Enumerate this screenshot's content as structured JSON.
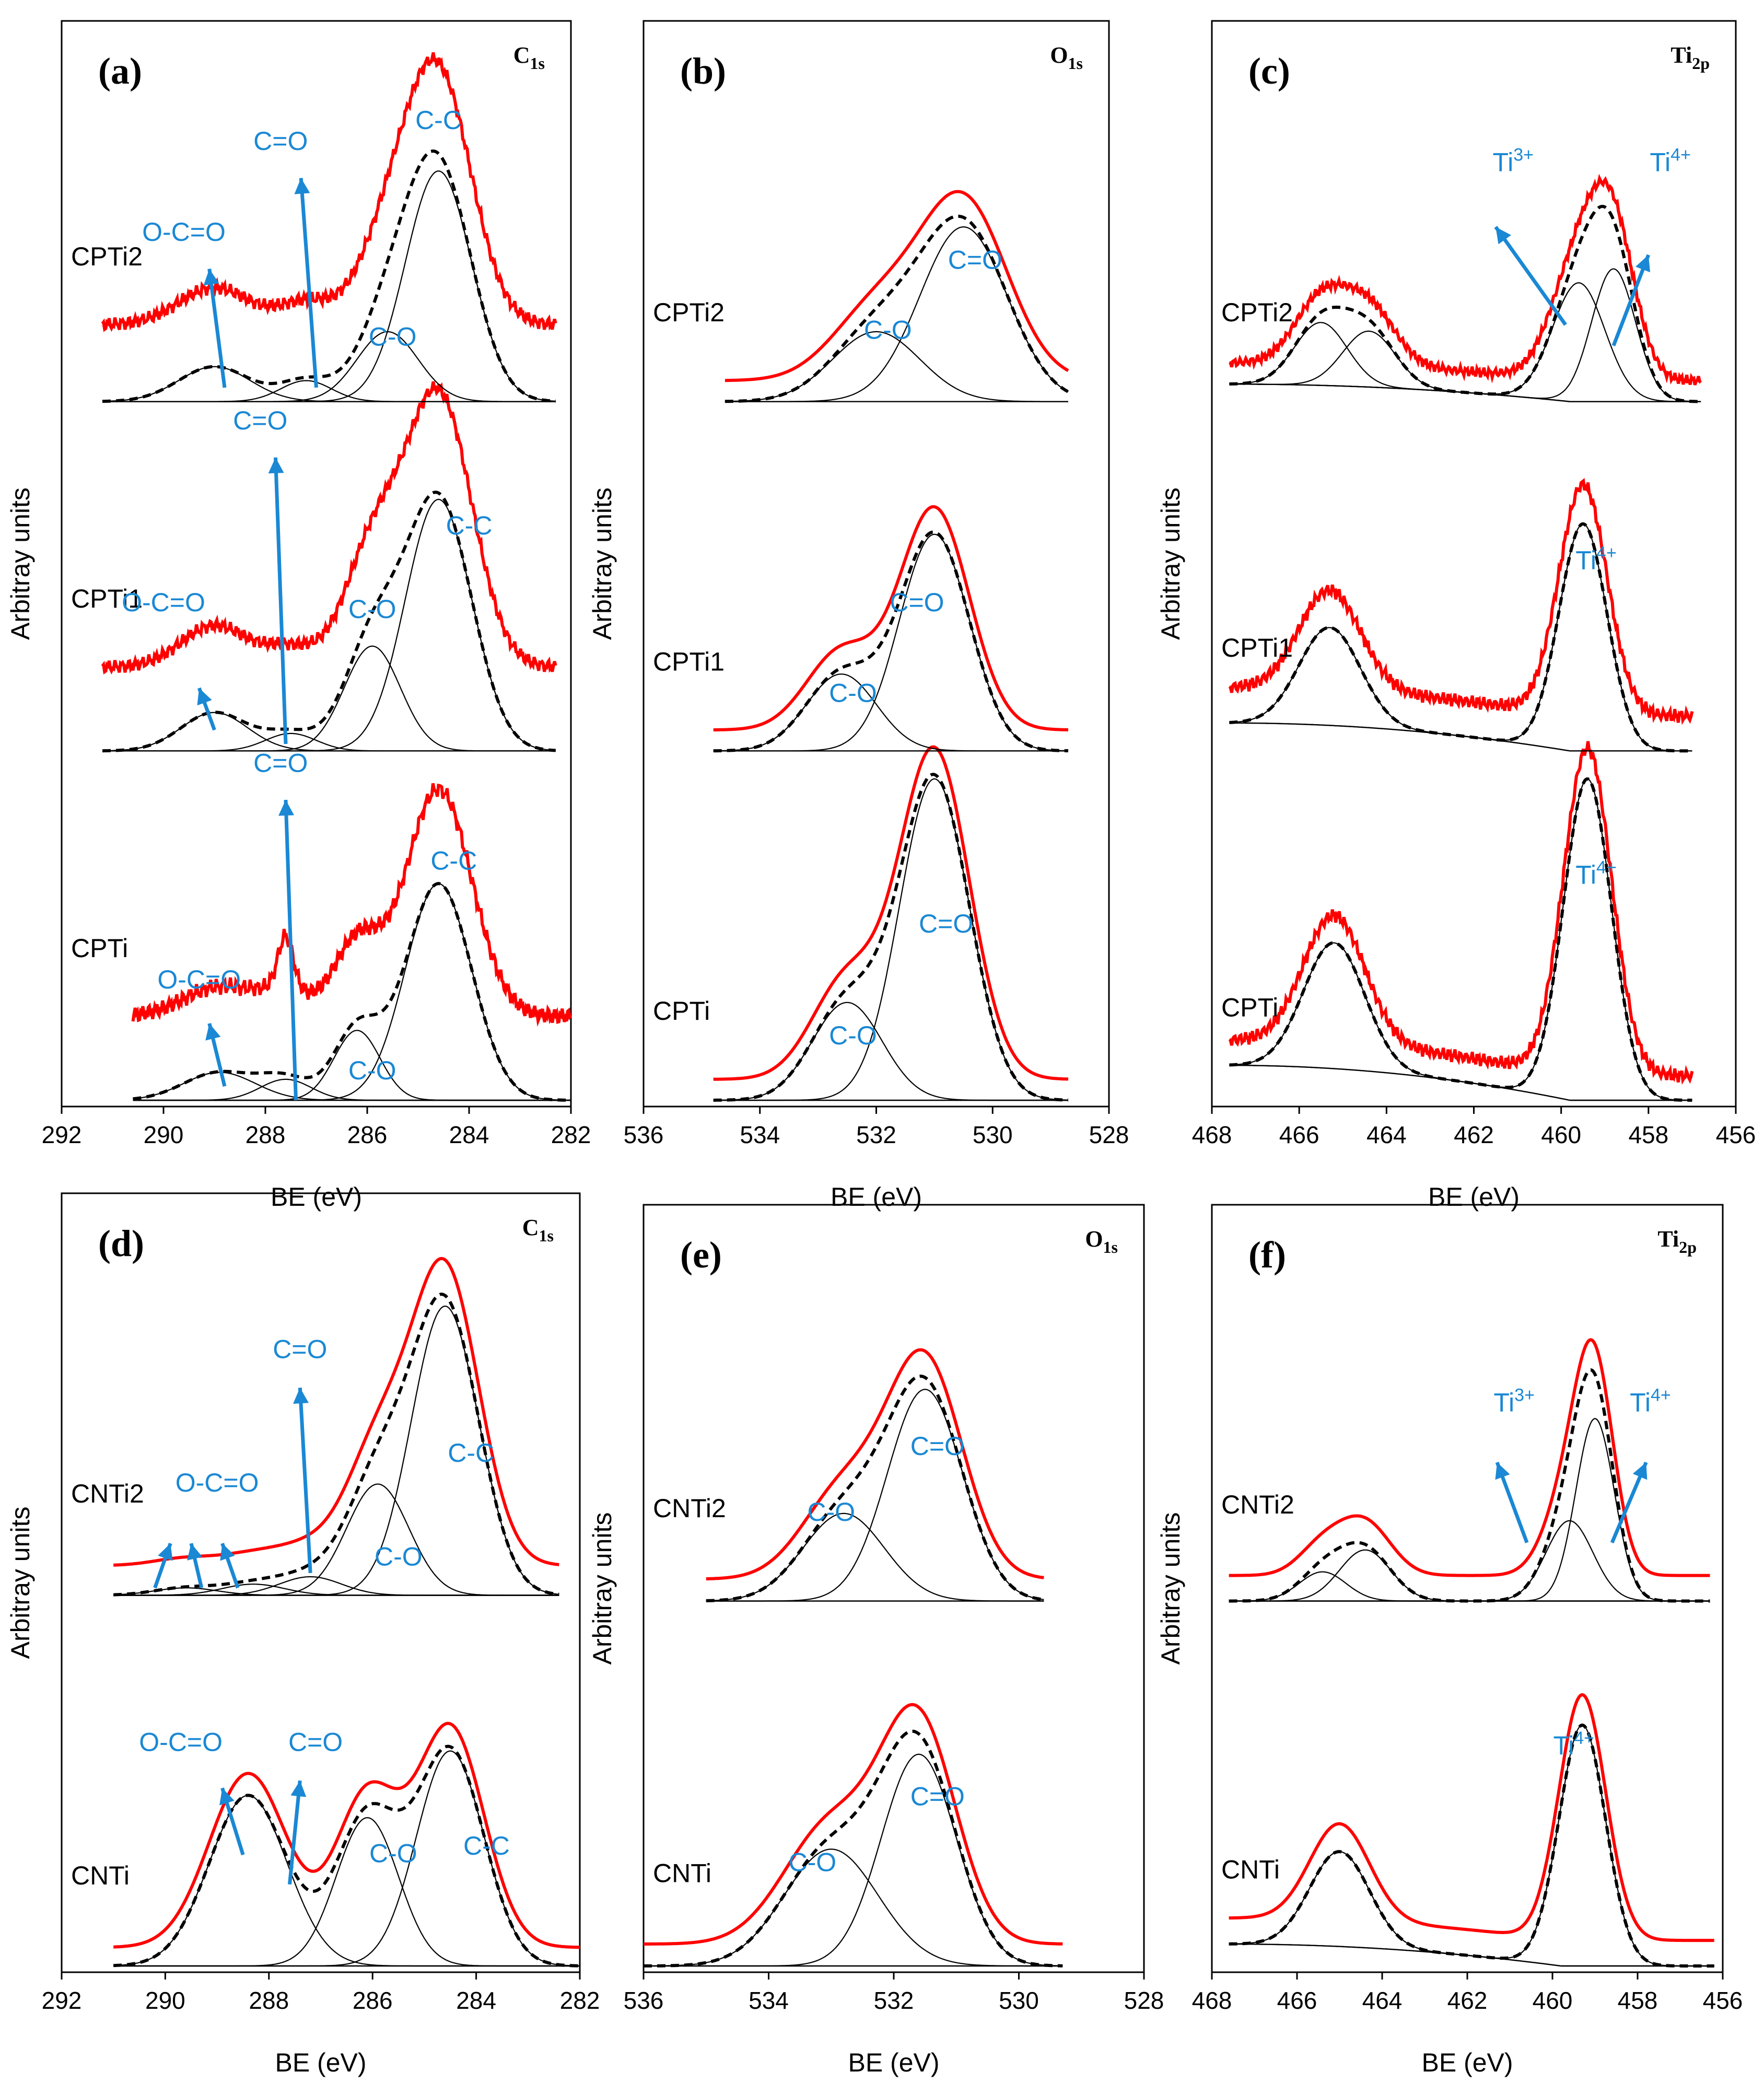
{
  "figure": {
    "background": "#ffffff",
    "axis_color": "#000000",
    "annotation_color": "#1a88d4",
    "envelope_color": "#ff0000"
  },
  "chart_data": [
    {
      "id": "a",
      "panel_label": "(a)",
      "element": "C",
      "element_sub": "1s",
      "type": "line",
      "xlabel": "BE (eV)",
      "ylabel": "Arbitray units",
      "xlim": [
        292,
        282
      ],
      "ylim": [
        0,
        3
      ],
      "xticks": [
        292,
        290,
        288,
        286,
        284,
        282
      ],
      "stacks": [
        {
          "label": "CPTi",
          "offset": 0.0,
          "x_range": [
            290.6,
            282.0
          ],
          "raw_noise": 0.025,
          "raw_offset": 0.24,
          "raw_scale": 1.05,
          "raw_extra": [
            [
              287.6,
              0.15,
              0.15
            ]
          ],
          "components": [
            {
              "center": 284.6,
              "height": 0.62,
              "width": 0.65
            },
            {
              "center": 286.2,
              "height": 0.2,
              "width": 0.45
            },
            {
              "center": 287.6,
              "height": 0.06,
              "width": 0.5
            },
            {
              "center": 288.9,
              "height": 0.08,
              "width": 0.7
            }
          ]
        },
        {
          "label": "CPTi1",
          "offset": 1.0,
          "x_range": [
            291.2,
            282.3
          ],
          "raw_noise": 0.02,
          "raw_offset": 0.24,
          "raw_scale": 1.08,
          "components": [
            {
              "center": 284.6,
              "height": 0.72,
              "width": 0.65
            },
            {
              "center": 285.9,
              "height": 0.3,
              "width": 0.55
            },
            {
              "center": 287.5,
              "height": 0.05,
              "width": 0.5
            },
            {
              "center": 289.0,
              "height": 0.11,
              "width": 0.65
            }
          ]
        },
        {
          "label": "CPTi2",
          "offset": 2.0,
          "x_range": [
            291.2,
            282.3
          ],
          "raw_noise": 0.02,
          "raw_offset": 0.22,
          "raw_scale": 1.06,
          "components": [
            {
              "center": 284.6,
              "height": 0.66,
              "width": 0.65
            },
            {
              "center": 285.6,
              "height": 0.2,
              "width": 0.6
            },
            {
              "center": 287.2,
              "height": 0.06,
              "width": 0.5
            },
            {
              "center": 289.0,
              "height": 0.1,
              "width": 0.7
            }
          ]
        }
      ],
      "annotations": [
        {
          "text": "O-C=O",
          "x": 289.3,
          "y": 0.32
        },
        {
          "text": "C=O",
          "x": 287.7,
          "y": 0.94
        },
        {
          "text": "C-O",
          "x": 285.9,
          "y": 0.06
        },
        {
          "text": "C-C",
          "x": 284.3,
          "y": 0.66
        },
        {
          "text": "O-C=O",
          "x": 290.0,
          "y": 1.4
        },
        {
          "text": "C=O",
          "x": 288.1,
          "y": 1.92
        },
        {
          "text": "C-O",
          "x": 285.9,
          "y": 1.38
        },
        {
          "text": "C-C",
          "x": 284.0,
          "y": 1.62
        },
        {
          "text": "O-C=O",
          "x": 289.6,
          "y": 2.46
        },
        {
          "text": "C=O",
          "x": 287.7,
          "y": 2.72
        },
        {
          "text": "C-O",
          "x": 285.5,
          "y": 2.16
        },
        {
          "text": "C-C",
          "x": 284.6,
          "y": 2.78
        }
      ],
      "arrows": [
        {
          "x1": 288.8,
          "y1": 0.04,
          "x2": 289.1,
          "y2": 0.22
        },
        {
          "x1": 287.4,
          "y1": 0.0,
          "x2": 287.6,
          "y2": 0.86
        },
        {
          "x1": 289.0,
          "y1": 1.06,
          "x2": 289.3,
          "y2": 1.18
        },
        {
          "x1": 287.6,
          "y1": 1.02,
          "x2": 287.8,
          "y2": 1.84
        },
        {
          "x1": 288.8,
          "y1": 2.04,
          "x2": 289.1,
          "y2": 2.38
        },
        {
          "x1": 287.0,
          "y1": 2.04,
          "x2": 287.3,
          "y2": 2.64
        }
      ]
    },
    {
      "id": "b",
      "panel_label": "(b)",
      "element": "O",
      "element_sub": "1s",
      "type": "line",
      "xlabel": "BE (eV)",
      "ylabel": "Arbitray units",
      "xlim": [
        536,
        528
      ],
      "ylim": [
        0,
        3
      ],
      "xticks": [
        536,
        534,
        532,
        530,
        528
      ],
      "stacks": [
        {
          "label": "CPTi",
          "offset": 0.0,
          "x_range": [
            534.8,
            528.7
          ],
          "raw_noise": 0.0,
          "raw_offset": 0.06,
          "raw_scale": 1.02,
          "components": [
            {
              "center": 531.0,
              "height": 0.92,
              "width": 0.6
            },
            {
              "center": 532.5,
              "height": 0.28,
              "width": 0.6
            }
          ]
        },
        {
          "label": "CPTi1",
          "offset": 1.0,
          "x_range": [
            534.8,
            528.7
          ],
          "raw_noise": 0.0,
          "raw_offset": 0.06,
          "raw_scale": 1.02,
          "components": [
            {
              "center": 531.0,
              "height": 0.62,
              "width": 0.6
            },
            {
              "center": 532.6,
              "height": 0.22,
              "width": 0.6
            }
          ]
        },
        {
          "label": "CPTi2",
          "offset": 2.0,
          "x_range": [
            534.6,
            528.7
          ],
          "raw_noise": 0.0,
          "raw_offset": 0.06,
          "raw_scale": 1.02,
          "components": [
            {
              "center": 530.5,
              "height": 0.5,
              "width": 0.75
            },
            {
              "center": 532.0,
              "height": 0.2,
              "width": 0.75
            }
          ]
        }
      ],
      "annotations": [
        {
          "text": "C-O",
          "x": 532.4,
          "y": 0.16
        },
        {
          "text": "C=O",
          "x": 530.8,
          "y": 0.48
        },
        {
          "text": "C-O",
          "x": 532.4,
          "y": 1.14
        },
        {
          "text": "C=O",
          "x": 531.3,
          "y": 1.4
        },
        {
          "text": "C-O",
          "x": 531.8,
          "y": 2.18
        },
        {
          "text": "C=O",
          "x": 530.3,
          "y": 2.38
        }
      ],
      "arrows": []
    },
    {
      "id": "c",
      "panel_label": "(c)",
      "element": "Ti",
      "element_sub": "2p",
      "type": "line",
      "xlabel": "BE (eV)",
      "ylabel": "Arbitray units",
      "xlim": [
        468,
        456
      ],
      "ylim": [
        0,
        3
      ],
      "xticks": [
        468,
        466,
        464,
        462,
        460,
        458,
        456
      ],
      "stacks": [
        {
          "label": "CPTi",
          "offset": 0.0,
          "x_range": [
            467.6,
            457.0
          ],
          "raw_noise": 0.02,
          "raw_offset": 0.07,
          "raw_scale": 1.02,
          "baseline_step": [
            467.6,
            0.1,
            459.8,
            0.0
          ],
          "components": [
            {
              "center": 459.4,
              "height": 0.92,
              "width": 0.55
            },
            {
              "center": 465.2,
              "height": 0.36,
              "width": 0.7
            }
          ]
        },
        {
          "label": "CPTi1",
          "offset": 1.0,
          "x_range": [
            467.6,
            457.0
          ],
          "raw_noise": 0.02,
          "raw_offset": 0.1,
          "raw_scale": 1.02,
          "baseline_step": [
            467.6,
            0.08,
            459.8,
            0.0
          ],
          "components": [
            {
              "center": 459.5,
              "height": 0.65,
              "width": 0.55
            },
            {
              "center": 465.3,
              "height": 0.28,
              "width": 0.7
            }
          ]
        },
        {
          "label": "CPTi2",
          "offset": 2.0,
          "x_range": [
            467.6,
            456.8
          ],
          "raw_noise": 0.015,
          "raw_offset": 0.06,
          "raw_scale": 1.02,
          "baseline_step": [
            467.6,
            0.05,
            459.8,
            0.0
          ],
          "components": [
            {
              "center": 459.6,
              "height": 0.34,
              "width": 0.6
            },
            {
              "center": 458.8,
              "height": 0.38,
              "width": 0.5
            },
            {
              "center": 465.5,
              "height": 0.18,
              "width": 0.6
            },
            {
              "center": 464.4,
              "height": 0.16,
              "width": 0.6
            }
          ]
        }
      ],
      "annotations": [
        {
          "text": "Ti",
          "sup": "4+",
          "x": 459.2,
          "y": 0.62
        },
        {
          "text": "Ti",
          "sup": "4+",
          "x": 459.2,
          "y": 1.52
        },
        {
          "text": "Ti",
          "sup": "3+",
          "x": 461.1,
          "y": 2.66
        },
        {
          "text": "Ti",
          "sup": "4+",
          "x": 457.5,
          "y": 2.66
        }
      ],
      "arrows": [
        {
          "x1": 459.9,
          "y1": 2.22,
          "x2": 461.5,
          "y2": 2.5
        },
        {
          "x1": 458.8,
          "y1": 2.16,
          "x2": 458.0,
          "y2": 2.42
        }
      ]
    },
    {
      "id": "d",
      "panel_label": "(d)",
      "element": "C",
      "element_sub": "1s",
      "type": "line",
      "xlabel": "BE (eV)",
      "ylabel": "Arbitray units",
      "xlim": [
        292,
        282
      ],
      "ylim": [
        0,
        2
      ],
      "xticks": [
        292,
        290,
        288,
        286,
        284,
        282
      ],
      "stacks": [
        {
          "label": "CNTi",
          "offset": 0.0,
          "x_range": [
            291.0,
            282.0
          ],
          "raw_noise": 0.0,
          "raw_offset": 0.05,
          "raw_scale": 1.02,
          "components": [
            {
              "center": 284.5,
              "height": 0.58,
              "width": 0.65
            },
            {
              "center": 286.1,
              "height": 0.4,
              "width": 0.6
            },
            {
              "center": 288.4,
              "height": 0.46,
              "width": 0.75
            }
          ]
        },
        {
          "label": "CNTi2",
          "offset": 1.0,
          "x_range": [
            291.0,
            282.4
          ],
          "raw_noise": 0.0,
          "raw_offset": 0.08,
          "raw_scale": 1.02,
          "components": [
            {
              "center": 284.6,
              "height": 0.78,
              "width": 0.65
            },
            {
              "center": 285.9,
              "height": 0.3,
              "width": 0.6
            },
            {
              "center": 287.2,
              "height": 0.05,
              "width": 0.6
            },
            {
              "center": 288.3,
              "height": 0.03,
              "width": 0.6
            },
            {
              "center": 289.6,
              "height": 0.02,
              "width": 0.6
            }
          ]
        }
      ],
      "annotations": [
        {
          "text": "O-C=O",
          "x": 289.7,
          "y": 0.58
        },
        {
          "text": "C=O",
          "x": 287.1,
          "y": 0.58
        },
        {
          "text": "C-O",
          "x": 285.6,
          "y": 0.28
        },
        {
          "text": "C-C",
          "x": 283.8,
          "y": 0.3
        },
        {
          "text": "O-C=O",
          "x": 289.0,
          "y": 1.28
        },
        {
          "text": "C=O",
          "x": 287.4,
          "y": 1.64
        },
        {
          "text": "C-O",
          "x": 285.5,
          "y": 1.08
        },
        {
          "text": "C-C",
          "x": 284.1,
          "y": 1.36
        }
      ],
      "arrows": [
        {
          "x1": 288.5,
          "y1": 0.3,
          "x2": 288.9,
          "y2": 0.48
        },
        {
          "x1": 287.6,
          "y1": 0.22,
          "x2": 287.4,
          "y2": 0.5
        },
        {
          "x1": 290.2,
          "y1": 1.02,
          "x2": 289.9,
          "y2": 1.14
        },
        {
          "x1": 289.3,
          "y1": 1.02,
          "x2": 289.5,
          "y2": 1.14
        },
        {
          "x1": 288.6,
          "y1": 1.02,
          "x2": 288.9,
          "y2": 1.14
        },
        {
          "x1": 287.2,
          "y1": 1.06,
          "x2": 287.4,
          "y2": 1.56
        }
      ]
    },
    {
      "id": "e",
      "panel_label": "(e)",
      "element": "O",
      "element_sub": "1s",
      "type": "line",
      "xlabel": "BE (eV)",
      "ylabel": "Arbitray units",
      "xlim": [
        536,
        528
      ],
      "ylim": [
        0,
        2
      ],
      "xticks": [
        536,
        534,
        532,
        530,
        528
      ],
      "stacks": [
        {
          "label": "CNTi",
          "offset": 0.0,
          "x_range": [
            536.0,
            529.3
          ],
          "raw_noise": 0.0,
          "raw_offset": 0.06,
          "raw_scale": 1.02,
          "components": [
            {
              "center": 531.6,
              "height": 0.58,
              "width": 0.6
            },
            {
              "center": 533.0,
              "height": 0.32,
              "width": 0.75
            }
          ]
        },
        {
          "label": "CNTi2",
          "offset": 1.0,
          "x_range": [
            535.0,
            529.6
          ],
          "raw_noise": 0.0,
          "raw_offset": 0.06,
          "raw_scale": 1.02,
          "components": [
            {
              "center": 531.5,
              "height": 0.58,
              "width": 0.6
            },
            {
              "center": 532.8,
              "height": 0.24,
              "width": 0.65
            }
          ]
        }
      ],
      "annotations": [
        {
          "text": "C-O",
          "x": 533.3,
          "y": 0.26
        },
        {
          "text": "C=O",
          "x": 531.3,
          "y": 0.44
        },
        {
          "text": "C-O",
          "x": 533.0,
          "y": 1.22
        },
        {
          "text": "C=O",
          "x": 531.3,
          "y": 1.4
        }
      ],
      "arrows": []
    },
    {
      "id": "f",
      "panel_label": "(f)",
      "element": "Ti",
      "element_sub": "2p",
      "type": "line",
      "xlabel": "BE (eV)",
      "ylabel": "Arbitray units",
      "xlim": [
        468,
        456
      ],
      "ylim": [
        0,
        2
      ],
      "xticks": [
        468,
        466,
        464,
        462,
        460,
        458,
        456
      ],
      "stacks": [
        {
          "label": "CNTi",
          "offset": 0.0,
          "x_range": [
            467.6,
            456.2
          ],
          "raw_noise": 0.0,
          "raw_offset": 0.07,
          "raw_scale": 1.02,
          "baseline_step": [
            467.6,
            0.06,
            459.8,
            0.0
          ],
          "components": [
            {
              "center": 459.3,
              "height": 0.66,
              "width": 0.55
            },
            {
              "center": 465.0,
              "height": 0.26,
              "width": 0.7
            }
          ]
        },
        {
          "label": "CNTi2",
          "offset": 1.0,
          "x_range": [
            467.6,
            456.3
          ],
          "raw_noise": 0.0,
          "raw_offset": 0.07,
          "raw_scale": 1.02,
          "components": [
            {
              "center": 459.0,
              "height": 0.5,
              "width": 0.45
            },
            {
              "center": 459.6,
              "height": 0.22,
              "width": 0.55
            },
            {
              "center": 465.4,
              "height": 0.08,
              "width": 0.55
            },
            {
              "center": 464.4,
              "height": 0.14,
              "width": 0.6
            }
          ]
        }
      ],
      "annotations": [
        {
          "text": "Ti",
          "sup": "4+",
          "x": 459.5,
          "y": 0.58
        },
        {
          "text": "Ti",
          "sup": "3+",
          "x": 460.9,
          "y": 1.52
        },
        {
          "text": "Ti",
          "sup": "4+",
          "x": 457.7,
          "y": 1.52
        }
      ],
      "arrows": [
        {
          "x1": 460.6,
          "y1": 1.16,
          "x2": 461.3,
          "y2": 1.38
        },
        {
          "x1": 458.6,
          "y1": 1.16,
          "x2": 457.8,
          "y2": 1.38
        }
      ]
    }
  ]
}
